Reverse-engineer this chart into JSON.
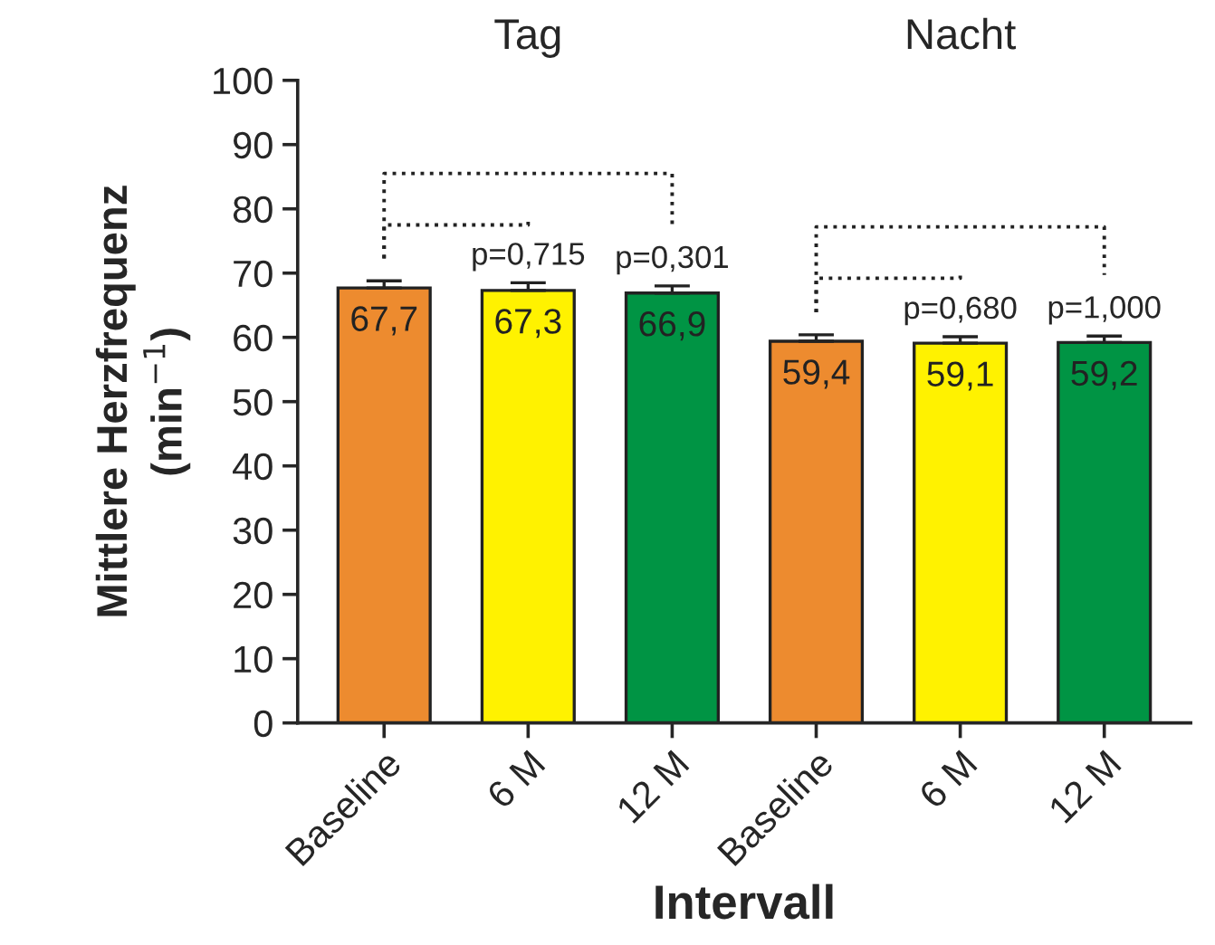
{
  "chart_data": {
    "type": "bar",
    "ylabel": "Mittlere Herzfrequenz\n(min$^{−1}$)",
    "xlabel": "Intervall",
    "categories": [
      "Baseline",
      "6 M",
      "12 M",
      "Baseline",
      "6 M",
      "12 M"
    ],
    "values": [
      67.7,
      67.3,
      66.9,
      59.4,
      59.1,
      59.2
    ],
    "colors": [
      "#ed8b2f",
      "#fff200",
      "#009444",
      "#ed8b2f",
      "#fff200",
      "#009444"
    ],
    "errors": [
      [
        67.7,
        68.8
      ],
      [
        67.3,
        68.5
      ],
      [
        66.9,
        68.0
      ],
      [
        59.4,
        60.4
      ],
      [
        59.1,
        60.1
      ],
      [
        59.2,
        60.2
      ]
    ],
    "value_labels": [
      "67,7",
      "67,3",
      "66,9",
      "59,4",
      "59,1",
      "59,2"
    ],
    "ylim": [
      0,
      100
    ],
    "yticks": [
      0,
      10,
      20,
      30,
      40,
      50,
      60,
      70,
      80,
      90,
      100
    ],
    "grid": false,
    "legend": false,
    "annotations": [
      "Tag",
      "Nacht",
      "p=0,715",
      "p=0,301",
      "p=0,680",
      "p=1,000"
    ]
  }
}
